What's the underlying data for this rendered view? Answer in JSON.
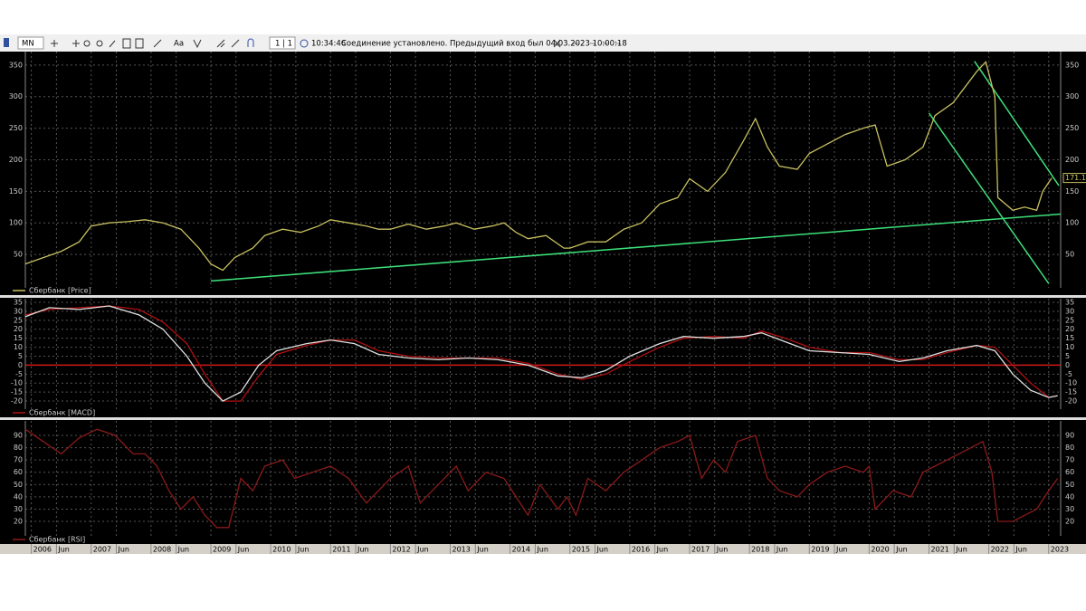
{
  "toolbar": {
    "timeframe": "MN",
    "font_button": "Aa",
    "page": "1 | 1",
    "time": "10:34:46",
    "status": "Соединение установлено. Предыдущий вход был 04.03.2023 10:00:18"
  },
  "time_axis": {
    "xlim": [
      2005.9,
      2023.2
    ],
    "xticks": [
      {
        "value": 2006,
        "label": "2006"
      },
      {
        "value": 2006.42,
        "label": "Jun"
      },
      {
        "value": 2007,
        "label": "2007"
      },
      {
        "value": 2007.42,
        "label": "Jun"
      },
      {
        "value": 2008,
        "label": "2008"
      },
      {
        "value": 2008.42,
        "label": "Jun"
      },
      {
        "value": 2009,
        "label": "2009"
      },
      {
        "value": 2009.42,
        "label": "Jun"
      },
      {
        "value": 2010,
        "label": "2010"
      },
      {
        "value": 2010.42,
        "label": "Jun"
      },
      {
        "value": 2011,
        "label": "2011"
      },
      {
        "value": 2011.42,
        "label": "Jun"
      },
      {
        "value": 2012,
        "label": "2012"
      },
      {
        "value": 2012.42,
        "label": "Jun"
      },
      {
        "value": 2013,
        "label": "2013"
      },
      {
        "value": 2013.42,
        "label": "Jun"
      },
      {
        "value": 2014,
        "label": "2014"
      },
      {
        "value": 2014.42,
        "label": "Jun"
      },
      {
        "value": 2015,
        "label": "2015"
      },
      {
        "value": 2015.42,
        "label": "Jun"
      },
      {
        "value": 2016,
        "label": "2016"
      },
      {
        "value": 2016.42,
        "label": "Jun"
      },
      {
        "value": 2017,
        "label": "2017"
      },
      {
        "value": 2017.42,
        "label": "Jun"
      },
      {
        "value": 2018,
        "label": "2018"
      },
      {
        "value": 2018.42,
        "label": "Jun"
      },
      {
        "value": 2019,
        "label": "2019"
      },
      {
        "value": 2019.42,
        "label": "Jun"
      },
      {
        "value": 2020,
        "label": "2020"
      },
      {
        "value": 2020.42,
        "label": "Jun"
      },
      {
        "value": 2021,
        "label": "2021"
      },
      {
        "value": 2021.42,
        "label": "Jun"
      },
      {
        "value": 2022,
        "label": "2022"
      },
      {
        "value": 2022.42,
        "label": "Jun"
      },
      {
        "value": 2023,
        "label": "2023"
      }
    ]
  },
  "chart_data": [
    {
      "type": "line",
      "grid": true,
      "ylim": [
        0,
        367
      ],
      "yticks": [
        50,
        100,
        150,
        200,
        250,
        300,
        350
      ],
      "x": [
        2005.9,
        2006.2,
        2006.5,
        2006.8,
        2007.0,
        2007.3,
        2007.6,
        2007.9,
        2008.2,
        2008.5,
        2008.8,
        2009.0,
        2009.2,
        2009.4,
        2009.7,
        2009.9,
        2010.2,
        2010.5,
        2010.8,
        2011.0,
        2011.3,
        2011.6,
        2011.8,
        2012.0,
        2012.3,
        2012.6,
        2012.9,
        2013.1,
        2013.4,
        2013.7,
        2013.9,
        2014.1,
        2014.3,
        2014.6,
        2014.9,
        2015.0,
        2015.3,
        2015.6,
        2015.9,
        2016.2,
        2016.5,
        2016.8,
        2017.0,
        2017.3,
        2017.6,
        2017.9,
        2018.1,
        2018.3,
        2018.5,
        2018.8,
        2019.0,
        2019.3,
        2019.6,
        2019.9,
        2020.1,
        2020.3,
        2020.6,
        2020.9,
        2021.1,
        2021.4,
        2021.6,
        2021.8,
        2021.95,
        2022.1,
        2022.15,
        2022.4,
        2022.6,
        2022.8,
        2022.9,
        2023.05
      ],
      "series": [
        {
          "name": "Сбербанк [Price]",
          "color": "#c8c060",
          "values": [
            35,
            45,
            55,
            70,
            95,
            100,
            102,
            105,
            100,
            90,
            60,
            35,
            25,
            45,
            60,
            80,
            90,
            85,
            95,
            105,
            100,
            95,
            90,
            90,
            98,
            90,
            95,
            100,
            90,
            95,
            100,
            85,
            75,
            80,
            60,
            60,
            70,
            70,
            90,
            100,
            130,
            140,
            170,
            150,
            180,
            230,
            265,
            220,
            190,
            185,
            210,
            225,
            240,
            250,
            255,
            190,
            200,
            220,
            270,
            290,
            315,
            340,
            355,
            300,
            140,
            120,
            125,
            120,
            150,
            171.16
          ]
        }
      ],
      "trend_lines": [
        {
          "color": "#3de07a",
          "x": [
            2009.0,
            2023.2
          ],
          "values": [
            8,
            114
          ]
        },
        {
          "color": "#3de07a",
          "x": [
            2021.0,
            2023.0
          ],
          "values": [
            274,
            4
          ]
        },
        {
          "color": "#3de07a",
          "x": [
            2021.76,
            2023.17
          ],
          "values": [
            356,
            159
          ]
        }
      ]
    },
    {
      "type": "line",
      "grid": true,
      "ylim": [
        -23.5,
        35.5
      ],
      "yticks": [
        -20,
        -15,
        -10,
        -5,
        0,
        5,
        10,
        15,
        20,
        25,
        30,
        35
      ],
      "hline": 0,
      "hline_color": "#d01818",
      "x": [
        2005.9,
        2006.3,
        2006.8,
        2007.3,
        2007.8,
        2008.2,
        2008.6,
        2008.9,
        2009.2,
        2009.5,
        2009.8,
        2010.1,
        2010.6,
        2011.0,
        2011.4,
        2011.8,
        2012.3,
        2012.8,
        2013.3,
        2013.8,
        2014.3,
        2014.8,
        2015.2,
        2015.6,
        2016.0,
        2016.5,
        2016.9,
        2017.4,
        2017.9,
        2018.2,
        2018.6,
        2019.0,
        2019.5,
        2020.0,
        2020.5,
        2020.9,
        2021.3,
        2021.8,
        2022.1,
        2022.4,
        2022.7,
        2023.0,
        2023.15
      ],
      "series": [
        {
          "name": "Сбербанк [MACD]",
          "color": "#b01010",
          "values": [
            28,
            31,
            32,
            33,
            31,
            24,
            12,
            -5,
            -20,
            -20,
            -6,
            6,
            11,
            14,
            14,
            8,
            5,
            4,
            4,
            4,
            1,
            -5,
            -8,
            -5,
            2,
            10,
            15,
            16,
            15,
            19,
            15,
            10,
            7,
            7,
            3,
            3,
            7,
            11,
            10,
            0,
            -10,
            -18,
            -17
          ]
        },
        {
          "color": "#e0e0e0",
          "values": [
            27,
            32,
            31,
            33,
            28,
            20,
            5,
            -10,
            -20,
            -15,
            0,
            8,
            12,
            14,
            12,
            6,
            4,
            3,
            4,
            3,
            0,
            -6,
            -7,
            -3,
            5,
            12,
            16,
            15,
            16,
            18,
            13,
            8,
            7,
            6,
            2,
            4,
            8,
            11,
            8,
            -5,
            -14,
            -18,
            -17
          ]
        }
      ]
    },
    {
      "type": "line",
      "grid": true,
      "ylim": [
        9.7,
        99.6
      ],
      "yticks": [
        20,
        30,
        40,
        50,
        60,
        70,
        80,
        90
      ],
      "x": [
        2005.9,
        2006.2,
        2006.5,
        2006.8,
        2007.1,
        2007.4,
        2007.7,
        2007.9,
        2008.1,
        2008.3,
        2008.5,
        2008.7,
        2008.9,
        2009.1,
        2009.3,
        2009.5,
        2009.7,
        2009.9,
        2010.2,
        2010.4,
        2010.7,
        2011.0,
        2011.3,
        2011.6,
        2011.8,
        2012.0,
        2012.3,
        2012.5,
        2012.8,
        2013.1,
        2013.3,
        2013.6,
        2013.9,
        2014.1,
        2014.3,
        2014.5,
        2014.8,
        2014.95,
        2015.1,
        2015.3,
        2015.6,
        2015.9,
        2016.2,
        2016.5,
        2016.8,
        2017.0,
        2017.2,
        2017.4,
        2017.6,
        2017.8,
        2018.1,
        2018.3,
        2018.5,
        2018.8,
        2019.0,
        2019.3,
        2019.6,
        2019.9,
        2020.0,
        2020.1,
        2020.4,
        2020.7,
        2020.9,
        2021.1,
        2021.5,
        2021.9,
        2022.05,
        2022.15,
        2022.4,
        2022.6,
        2022.8,
        2023.0,
        2023.15
      ],
      "series": [
        {
          "name": "Сбербанк [RSI]",
          "color": "#8b1a1a",
          "values": [
            95,
            85,
            75,
            88,
            95,
            90,
            75,
            75,
            65,
            45,
            30,
            40,
            25,
            15,
            15,
            55,
            45,
            65,
            70,
            55,
            60,
            65,
            55,
            35,
            45,
            55,
            65,
            35,
            50,
            65,
            45,
            60,
            55,
            40,
            25,
            50,
            30,
            40,
            25,
            55,
            45,
            60,
            70,
            80,
            85,
            90,
            55,
            70,
            60,
            85,
            90,
            55,
            45,
            40,
            50,
            60,
            65,
            60,
            65,
            30,
            45,
            40,
            60,
            65,
            75,
            85,
            60,
            20,
            20,
            25,
            30,
            45,
            55
          ]
        }
      ]
    }
  ]
}
